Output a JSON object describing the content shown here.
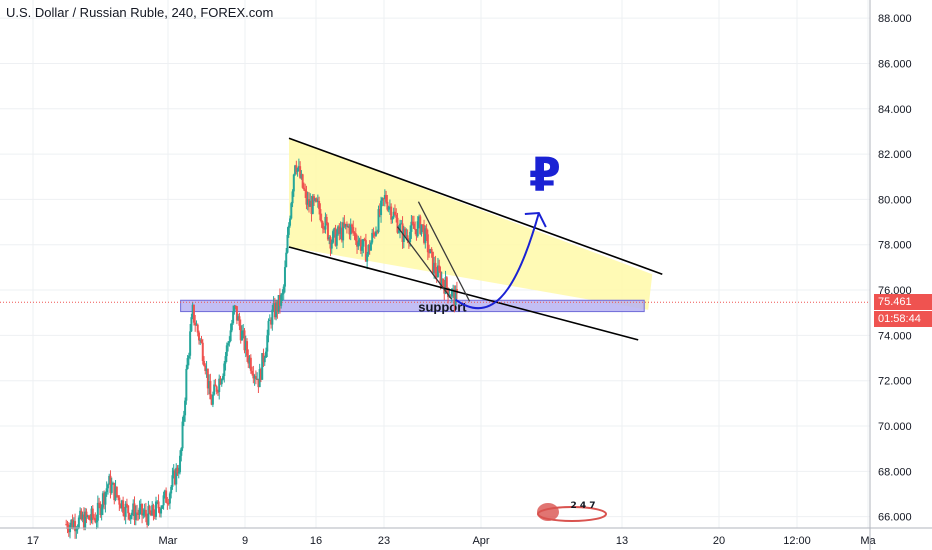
{
  "header": {
    "title": "U.S. Dollar / Russian Ruble, 240, FOREX.com"
  },
  "annotations": {
    "support_label": "support",
    "currency_symbol": "₽",
    "logo_text": "2 4 7"
  },
  "price_badge": {
    "price": "75.461",
    "countdown": "01:58:44",
    "color": "#ef5350"
  },
  "colors": {
    "up": "#26a69a",
    "down": "#ef5350",
    "channel_fill": "#fff9a8",
    "support_fill": "#b7b3f2",
    "arrow": "#1a22d4"
  },
  "chart_data": {
    "type": "candlestick",
    "title": "U.S. Dollar / Russian Ruble, 240, FOREX.com",
    "x_ticks": [
      "17",
      "Mar",
      "9",
      "16",
      "23",
      "Apr",
      "13",
      "20",
      "12:00",
      "Ma"
    ],
    "y_ticks": [
      "66.000",
      "68.000",
      "70.000",
      "72.000",
      "74.000",
      "76.000",
      "78.000",
      "80.000",
      "82.000",
      "84.000",
      "86.000",
      "88.000"
    ],
    "ylim": [
      65.5,
      88.8
    ],
    "current_price": 75.461,
    "grid": true,
    "anchors": [
      {
        "t": 0.0,
        "p": 65.4
      },
      {
        "t": 2.0,
        "p": 65.6
      },
      {
        "t": 3.2,
        "p": 66.0
      },
      {
        "t": 3.6,
        "p": 67.5
      },
      {
        "t": 4.2,
        "p": 66.3
      },
      {
        "t": 5.0,
        "p": 66.0
      },
      {
        "t": 5.6,
        "p": 67.0
      },
      {
        "t": 6.0,
        "p": 68.5
      },
      {
        "t": 6.2,
        "p": 72.5
      },
      {
        "t": 6.4,
        "p": 75.0
      },
      {
        "t": 6.8,
        "p": 73.0
      },
      {
        "t": 7.0,
        "p": 71.0
      },
      {
        "t": 7.4,
        "p": 72.5
      },
      {
        "t": 7.8,
        "p": 75.2
      },
      {
        "t": 8.2,
        "p": 73.2
      },
      {
        "t": 8.6,
        "p": 72.0
      },
      {
        "t": 9.0,
        "p": 74.8
      },
      {
        "t": 9.4,
        "p": 75.7
      },
      {
        "t": 9.6,
        "p": 79.0
      },
      {
        "t": 9.8,
        "p": 81.8
      },
      {
        "t": 10.2,
        "p": 79.8
      },
      {
        "t": 10.6,
        "p": 79.6
      },
      {
        "t": 11.0,
        "p": 78.2
      },
      {
        "t": 11.6,
        "p": 78.8
      },
      {
        "t": 12.2,
        "p": 77.6
      },
      {
        "t": 12.8,
        "p": 80.1
      },
      {
        "t": 13.4,
        "p": 78.4
      },
      {
        "t": 14.0,
        "p": 78.9
      },
      {
        "t": 14.4,
        "p": 77.0
      },
      {
        "t": 14.8,
        "p": 76.2
      },
      {
        "t": 15.2,
        "p": 75.5
      }
    ],
    "trend_lines": [
      {
        "from": {
          "t": 9.6,
          "p": 82.7
        },
        "to": {
          "t": 22.0,
          "p": 76.7
        }
      },
      {
        "from": {
          "t": 9.6,
          "p": 77.9
        },
        "to": {
          "t": 21.2,
          "p": 73.8
        }
      },
      {
        "from": {
          "t": 13.9,
          "p": 79.9
        },
        "to": {
          "t": 15.6,
          "p": 75.5
        }
      },
      {
        "from": {
          "t": 13.2,
          "p": 78.8
        },
        "to": {
          "t": 15.0,
          "p": 75.6
        }
      }
    ],
    "support_zone": {
      "from_t": 6.0,
      "to_t": 21.4,
      "low": 75.05,
      "high": 75.55
    }
  }
}
